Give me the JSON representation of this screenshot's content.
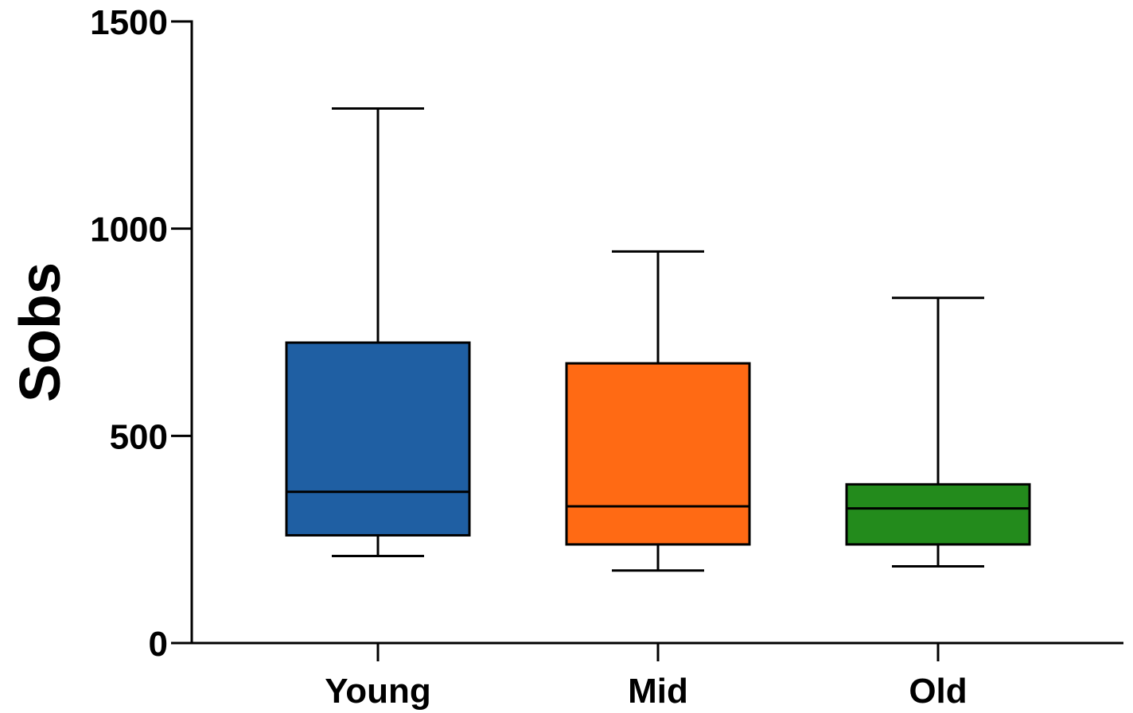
{
  "chart_data": {
    "type": "box",
    "title": "",
    "xlabel": "",
    "ylabel": "Sobs",
    "ylim": [
      0,
      1500
    ],
    "yticks": [
      0,
      500,
      1000,
      1500
    ],
    "categories": [
      "Young",
      "Mid",
      "Old"
    ],
    "series": [
      {
        "name": "Young",
        "color": "#1f5fa3",
        "whisker_low": 210,
        "q1": 260,
        "median": 365,
        "q3": 725,
        "whisker_high": 1290
      },
      {
        "name": "Mid",
        "color": "#ff6a14",
        "whisker_low": 175,
        "q1": 238,
        "median": 330,
        "q3": 675,
        "whisker_high": 945
      },
      {
        "name": "Old",
        "color": "#238b1c",
        "whisker_low": 185,
        "q1": 238,
        "median": 325,
        "q3": 383,
        "whisker_high": 833
      }
    ]
  }
}
